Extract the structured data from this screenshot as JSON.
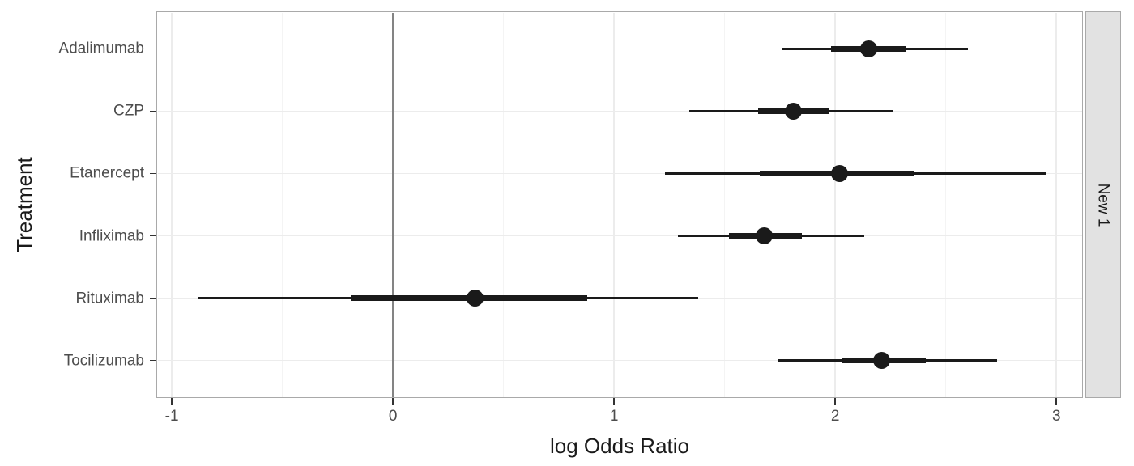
{
  "chart_data": {
    "type": "scatter",
    "subtype": "forest-pointrange",
    "title": "",
    "xlabel": "log Odds Ratio",
    "ylabel": "Treatment",
    "facet_label": "New 1",
    "legend": "none",
    "grid": "on",
    "xlim": [
      -1.07,
      3.12
    ],
    "x_major_ticks": [
      -1,
      0,
      1,
      2,
      3
    ],
    "x_minor_ticks": [
      -0.5,
      0.5,
      1.5,
      2.5
    ],
    "reference_line_x": 0,
    "categories": [
      "Adalimumab",
      "CZP",
      "Etanercept",
      "Infliximab",
      "Rituximab",
      "Tocilizumab"
    ],
    "series": [
      {
        "name": "Adalimumab",
        "estimate": 2.15,
        "inner_ci": [
          1.98,
          2.32
        ],
        "outer_ci": [
          1.76,
          2.6
        ]
      },
      {
        "name": "CZP",
        "estimate": 1.81,
        "inner_ci": [
          1.65,
          1.97
        ],
        "outer_ci": [
          1.34,
          2.26
        ]
      },
      {
        "name": "Etanercept",
        "estimate": 2.02,
        "inner_ci": [
          1.66,
          2.36
        ],
        "outer_ci": [
          1.23,
          2.95
        ]
      },
      {
        "name": "Infliximab",
        "estimate": 1.68,
        "inner_ci": [
          1.52,
          1.85
        ],
        "outer_ci": [
          1.29,
          2.13
        ]
      },
      {
        "name": "Rituximab",
        "estimate": 0.37,
        "inner_ci": [
          -0.19,
          0.88
        ],
        "outer_ci": [
          -0.88,
          1.38
        ]
      },
      {
        "name": "Tocilizumab",
        "estimate": 2.21,
        "inner_ci": [
          2.03,
          2.41
        ],
        "outer_ci": [
          1.74,
          2.73
        ]
      }
    ]
  },
  "colors": {
    "data": "#1a1a1a",
    "zero_line": "#848484",
    "panel_border": "#a9a9a9",
    "grid_major": "#ececec",
    "grid_minor": "#f4f4f4",
    "tick_label": "#4d4d4d",
    "axis_title": "#1a1a1a",
    "strip_fill": "#e2e2e2",
    "background": "#ffffff"
  }
}
